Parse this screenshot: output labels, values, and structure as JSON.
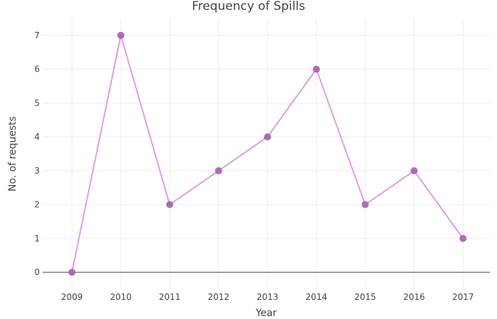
{
  "chart_data": {
    "type": "line",
    "title": "Frequency of Spills",
    "xlabel": "Year",
    "ylabel": "No. of requests",
    "x": [
      2009,
      2010,
      2011,
      2012,
      2013,
      2014,
      2015,
      2016,
      2017
    ],
    "series": [
      {
        "values": [
          0,
          7,
          2,
          3,
          4,
          6,
          2,
          3,
          1
        ]
      }
    ],
    "ylim": [
      -0.5,
      7.5
    ],
    "xlim": [
      2008.4,
      2017.55
    ],
    "yticks": [
      0,
      1,
      2,
      3,
      4,
      5,
      6,
      7
    ],
    "grid": true,
    "legend": "none",
    "colors": {
      "line": "#dda0dd",
      "marker": "#aa5db4",
      "grid": "#eeeeee",
      "zeroline": "#444444",
      "text": "#444444"
    }
  }
}
